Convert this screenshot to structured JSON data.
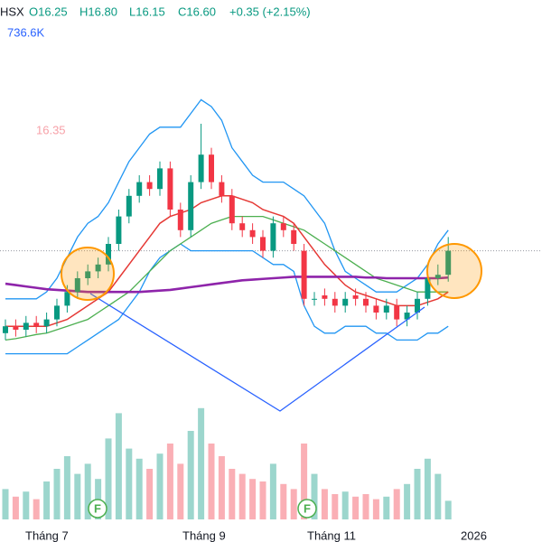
{
  "chart_data": {
    "type": "candlestick",
    "header": {
      "exchange": "HSX",
      "open": "O16.25",
      "high": "H16.80",
      "low": "L16.15",
      "close": "C16.60",
      "change": "+0.35 (+2.15%)"
    },
    "volume_label": "736.6K",
    "indicator_label": "16.35",
    "x_labels": [
      "Tháng 7",
      "Tháng 9",
      "Tháng 11",
      "2026"
    ],
    "markers": [
      "F",
      "F"
    ],
    "ylim": [
      14.2,
      19.2
    ],
    "vlim": [
      0,
      5000000
    ],
    "open": [
      15.4,
      15.5,
      15.45,
      15.55,
      15.5,
      15.6,
      15.8,
      16.0,
      16.2,
      16.3,
      16.4,
      16.7,
      17.1,
      17.4,
      17.6,
      17.5,
      17.8,
      17.2,
      16.9,
      17.6,
      18.0,
      17.6,
      17.4,
      17.0,
      16.9,
      16.8,
      16.6,
      17.0,
      16.9,
      16.6,
      15.9,
      15.95,
      15.9,
      15.8,
      15.95,
      15.9,
      15.8,
      15.7,
      15.8,
      15.6,
      15.7,
      15.9,
      16.2,
      16.25
    ],
    "high": [
      15.6,
      15.6,
      15.65,
      15.65,
      15.7,
      15.9,
      16.1,
      16.3,
      16.4,
      16.5,
      16.8,
      17.2,
      17.5,
      17.7,
      17.7,
      17.9,
      17.9,
      17.3,
      17.7,
      18.45,
      18.1,
      17.7,
      17.5,
      17.1,
      17.0,
      16.9,
      17.1,
      17.1,
      17.0,
      16.7,
      16.0,
      16.05,
      16.0,
      16.0,
      16.05,
      16.0,
      15.9,
      15.9,
      15.9,
      15.8,
      16.0,
      16.3,
      16.4,
      16.8
    ],
    "low": [
      15.3,
      15.35,
      15.35,
      15.4,
      15.4,
      15.5,
      15.7,
      15.9,
      16.1,
      16.2,
      16.3,
      16.6,
      17.0,
      17.3,
      17.4,
      17.4,
      17.1,
      16.8,
      16.8,
      17.5,
      17.5,
      17.3,
      16.9,
      16.8,
      16.7,
      16.5,
      16.5,
      16.8,
      16.6,
      15.8,
      15.8,
      15.8,
      15.7,
      15.7,
      15.8,
      15.7,
      15.6,
      15.6,
      15.5,
      15.5,
      15.6,
      15.8,
      16.1,
      16.15
    ],
    "close": [
      15.5,
      15.45,
      15.55,
      15.5,
      15.6,
      15.8,
      16.0,
      16.2,
      16.3,
      16.4,
      16.7,
      17.1,
      17.4,
      17.6,
      17.5,
      17.8,
      17.2,
      16.9,
      17.6,
      18.0,
      17.6,
      17.4,
      17.0,
      16.9,
      16.8,
      16.6,
      17.0,
      16.9,
      16.7,
      15.9,
      15.9,
      15.9,
      15.8,
      15.9,
      15.9,
      15.8,
      15.7,
      15.8,
      15.6,
      15.7,
      15.9,
      16.2,
      16.25,
      16.6
    ],
    "volume": [
      1200000,
      900000,
      1100000,
      800000,
      1500000,
      2000000,
      2500000,
      1800000,
      2200000,
      1600000,
      3200000,
      4200000,
      2800000,
      2400000,
      2000000,
      2600000,
      3000000,
      2200000,
      3500000,
      4400000,
      3000000,
      2500000,
      2000000,
      1800000,
      1600000,
      1500000,
      2200000,
      1400000,
      1200000,
      3000000,
      1800000,
      1200000,
      1000000,
      1100000,
      900000,
      1000000,
      800000,
      900000,
      1200000,
      1400000,
      2000000,
      2400000,
      1800000,
      736600
    ],
    "up_color": "#089981",
    "down_color": "#f23645",
    "lines": [
      {
        "color": "#2196f3",
        "width": 1.3,
        "values": [
          15.9,
          15.9,
          15.9,
          15.9,
          16.0,
          16.2,
          16.5,
          16.8,
          17.0,
          17.1,
          17.3,
          17.6,
          17.9,
          18.1,
          18.3,
          18.4,
          18.4,
          18.4,
          18.6,
          18.8,
          18.7,
          18.5,
          18.1,
          17.9,
          17.7,
          17.6,
          17.6,
          17.6,
          17.5,
          17.4,
          17.2,
          17.0,
          16.6,
          16.3,
          16.2,
          16.1,
          16.0,
          16.0,
          16.0,
          16.1,
          16.2,
          16.4,
          16.7,
          16.9
        ]
      },
      {
        "color": "#2196f3",
        "width": 1.3,
        "values": [
          15.1,
          15.1,
          15.1,
          15.1,
          15.1,
          15.1,
          15.1,
          15.2,
          15.3,
          15.4,
          15.5,
          15.6,
          15.8,
          16.0,
          16.3,
          16.5,
          16.6,
          16.7,
          16.6,
          16.6,
          16.6,
          16.6,
          16.6,
          16.6,
          16.6,
          16.5,
          16.4,
          16.4,
          16.3,
          15.8,
          15.5,
          15.4,
          15.4,
          15.5,
          15.5,
          15.5,
          15.4,
          15.4,
          15.3,
          15.3,
          15.3,
          15.4,
          15.4,
          15.5
        ]
      },
      {
        "color": "#4caf50",
        "width": 1.3,
        "values": [
          15.3,
          15.32,
          15.35,
          15.38,
          15.4,
          15.45,
          15.5,
          15.55,
          15.6,
          15.7,
          15.8,
          15.9,
          16.0,
          16.15,
          16.3,
          16.45,
          16.6,
          16.7,
          16.8,
          16.9,
          17.0,
          17.05,
          17.1,
          17.1,
          17.1,
          17.1,
          17.05,
          17.0,
          16.95,
          16.9,
          16.8,
          16.7,
          16.6,
          16.5,
          16.4,
          16.3,
          16.2,
          16.15,
          16.1,
          16.05,
          16.0,
          16.0,
          16.0,
          16.0
        ]
      },
      {
        "color": "#e53935",
        "width": 1.5,
        "values": [
          15.5,
          15.5,
          15.5,
          15.5,
          15.5,
          15.55,
          15.6,
          15.7,
          15.8,
          15.9,
          16.0,
          16.2,
          16.4,
          16.6,
          16.8,
          17.0,
          17.1,
          17.15,
          17.2,
          17.3,
          17.35,
          17.4,
          17.4,
          17.35,
          17.3,
          17.2,
          17.15,
          17.1,
          17.0,
          16.8,
          16.6,
          16.4,
          16.25,
          16.1,
          16.0,
          15.95,
          15.9,
          15.85,
          15.8,
          15.8,
          15.8,
          15.85,
          15.9,
          16.0
        ]
      },
      {
        "color": "#8e24aa",
        "width": 2.6,
        "values": [
          16.12,
          16.1,
          16.08,
          16.06,
          16.04,
          16.03,
          16.02,
          16.01,
          16.0,
          16.0,
          16.0,
          16.0,
          16.0,
          16.0,
          16.01,
          16.02,
          16.03,
          16.05,
          16.07,
          16.09,
          16.11,
          16.13,
          16.15,
          16.17,
          16.18,
          16.19,
          16.2,
          16.21,
          16.22,
          16.22,
          16.22,
          16.22,
          16.22,
          16.22,
          16.22,
          16.21,
          16.21,
          16.2,
          16.2,
          16.2,
          16.2,
          16.2,
          16.2,
          16.21
        ]
      }
    ]
  }
}
